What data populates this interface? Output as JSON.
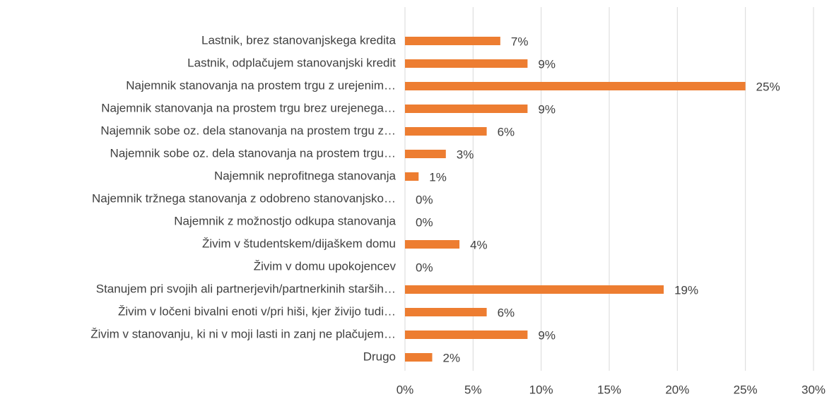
{
  "chart_data": {
    "type": "bar",
    "orientation": "horizontal",
    "categories": [
      "Lastnik, brez stanovanjskega kredita",
      "Lastnik, odplačujem stanovanjski kredit",
      "Najemnik stanovanja na prostem trgu z urejenim…",
      "Najemnik stanovanja na prostem trgu brez urejenega…",
      "Najemnik sobe oz. dela stanovanja na prostem trgu z…",
      "Najemnik sobe oz. dela stanovanja na prostem trgu…",
      "Najemnik neprofitnega stanovanja",
      "Najemnik tržnega stanovanja z odobreno stanovanjsko…",
      "Najemnik z možnostjo odkupa stanovanja",
      "Živim v študentskem/dijaškem domu",
      "Živim v domu upokojencev",
      "Stanujem pri svojih ali partnerjevih/partnerkinih starših…",
      "Živim v ločeni bivalni enoti v/pri hiši, kjer živijo tudi…",
      "Živim v stanovanju, ki ni v moji lasti in zanj ne plačujem…",
      "Drugo"
    ],
    "values": [
      7,
      9,
      25,
      9,
      6,
      3,
      1,
      0,
      0,
      4,
      0,
      19,
      6,
      9,
      2
    ],
    "value_labels": [
      "7%",
      "9%",
      "25%",
      "9%",
      "6%",
      "3%",
      "1%",
      "0%",
      "0%",
      "4%",
      "0%",
      "19%",
      "6%",
      "9%",
      "2%"
    ],
    "color": "#ed7d31",
    "xlim": [
      0,
      30
    ],
    "xticks": [
      {
        "value": 0,
        "label": "0%"
      },
      {
        "value": 5,
        "label": "5%"
      },
      {
        "value": 10,
        "label": "10%"
      },
      {
        "value": 15,
        "label": "15%"
      },
      {
        "value": 20,
        "label": "20%"
      },
      {
        "value": 25,
        "label": "25%"
      },
      {
        "value": 30,
        "label": "30%"
      }
    ],
    "grid": true
  }
}
